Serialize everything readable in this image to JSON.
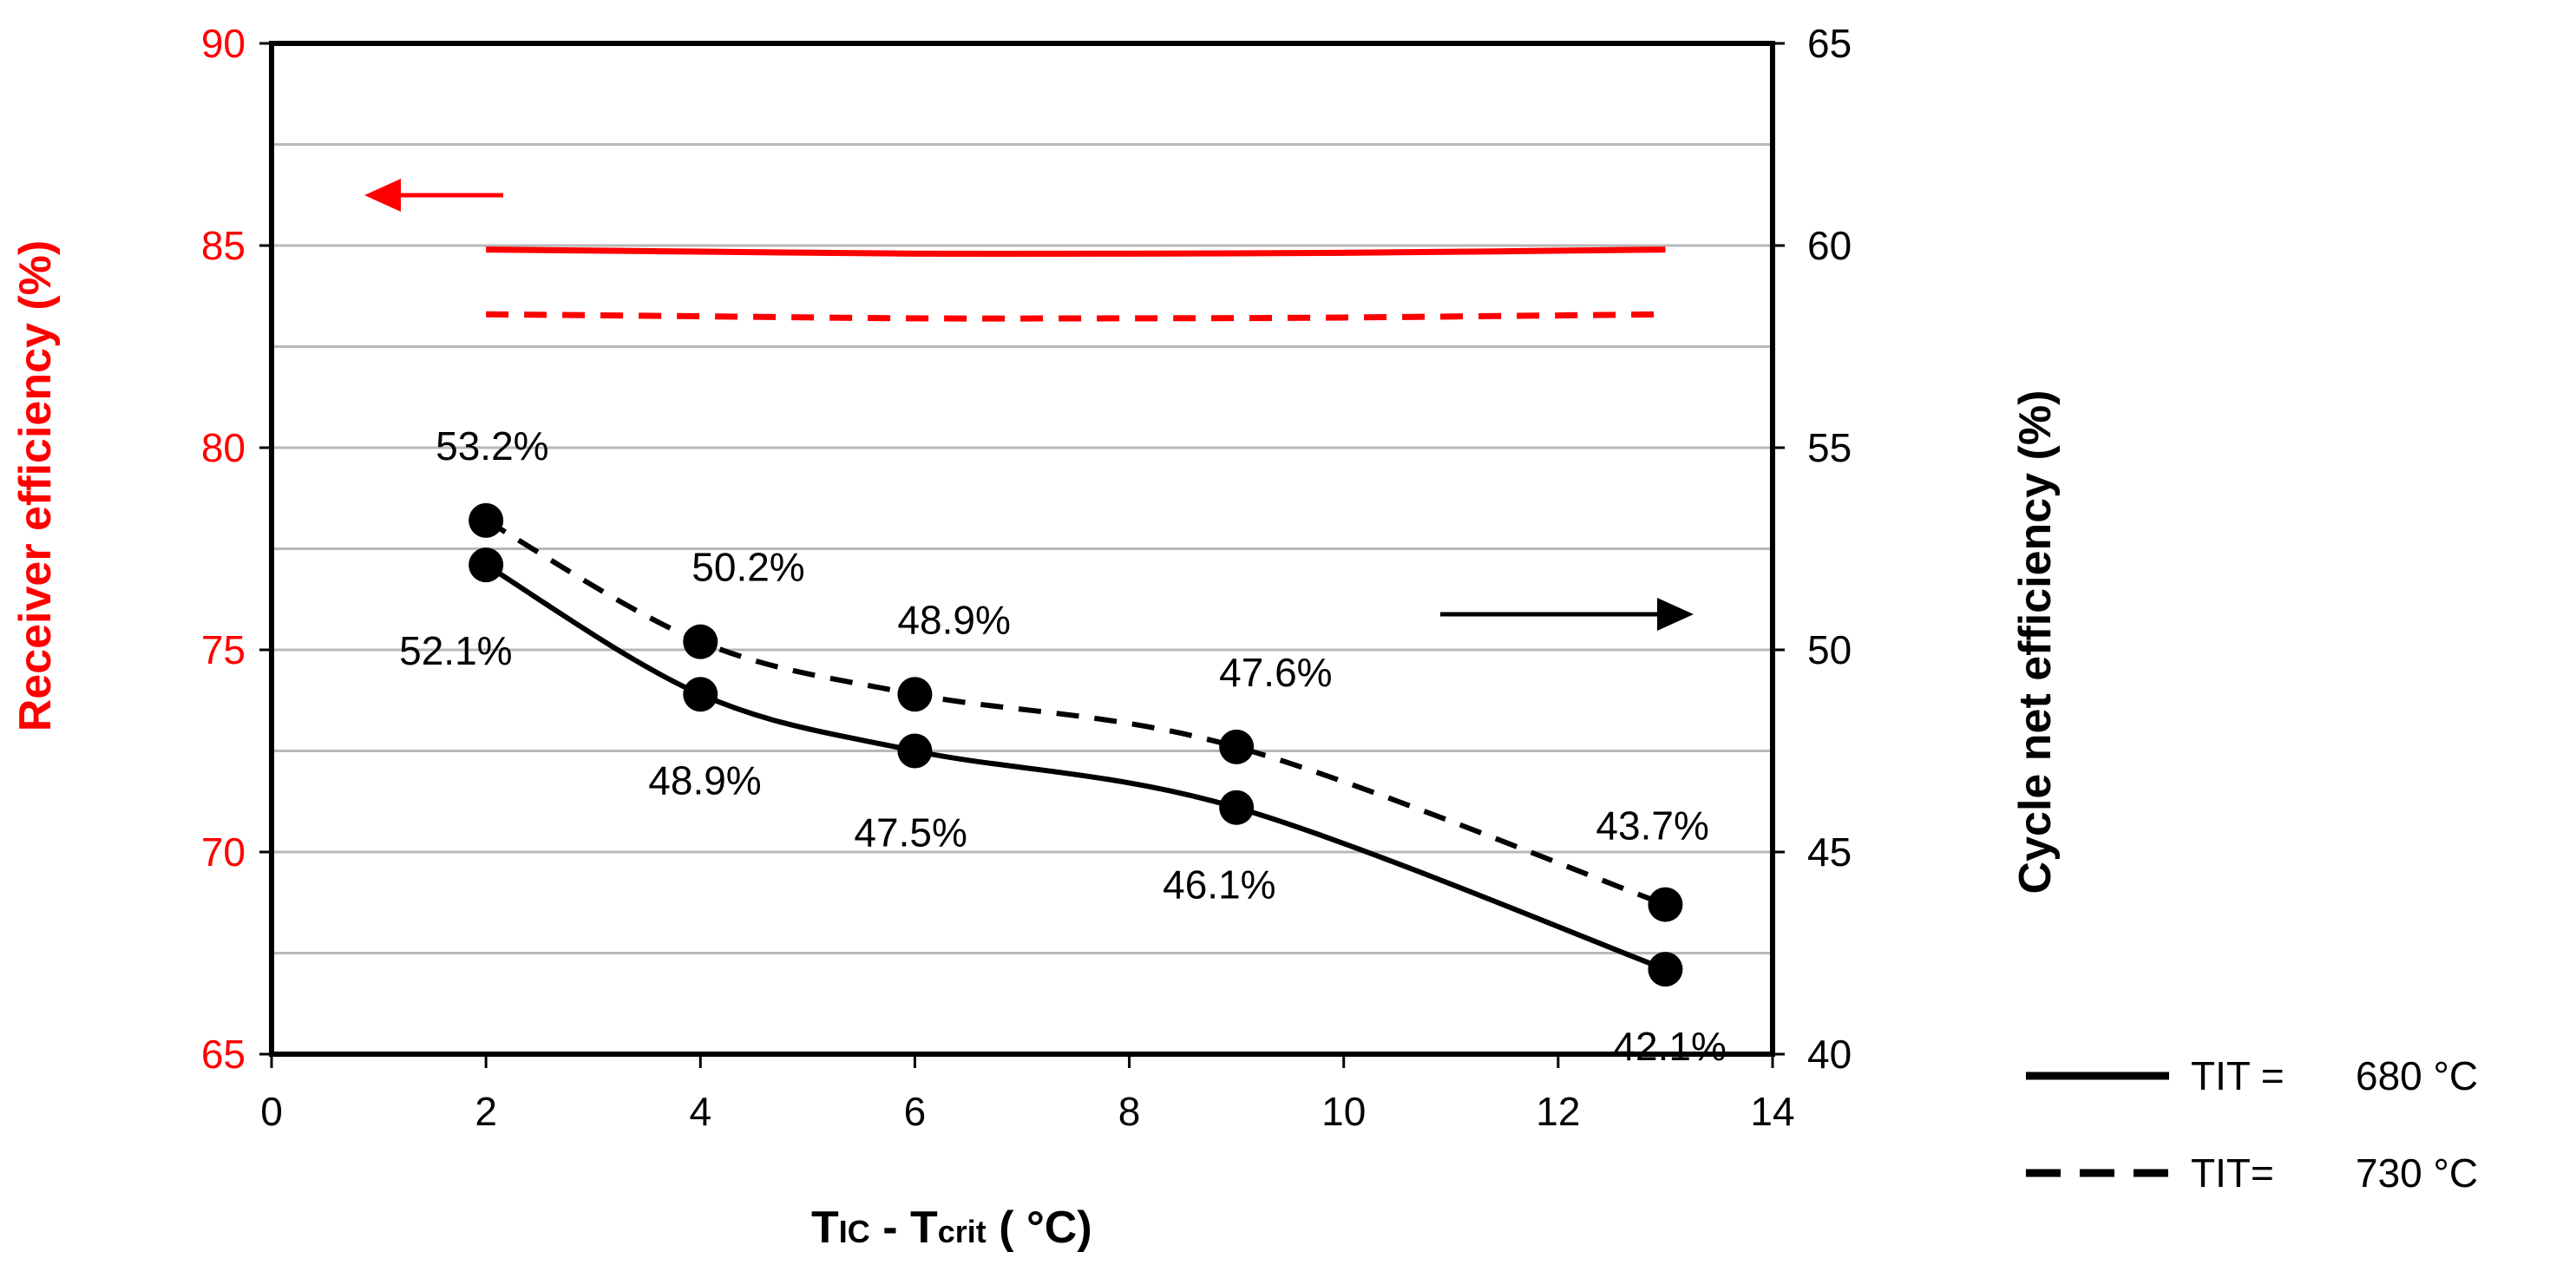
{
  "chart_data": {
    "type": "line",
    "x_axis": {
      "title_main": "T",
      "title_sub1": "IC",
      "title_mid": " - T",
      "title_sub2": "crit",
      "title_unit": "  ( °C)",
      "range": [
        0,
        14
      ],
      "ticks": [
        "0",
        "2",
        "4",
        "6",
        "8",
        "10",
        "12",
        "14"
      ]
    },
    "y_left": {
      "title": "Receiver efficiency (%)",
      "color": "#ff0000",
      "range": [
        65,
        90
      ],
      "ticks": [
        "65",
        "70",
        "75",
        "80",
        "85",
        "90"
      ]
    },
    "y_right": {
      "title": "Cycle net efficiency (%)",
      "color": "#000000",
      "range": [
        40,
        65
      ],
      "ticks": [
        "40",
        "45",
        "50",
        "55",
        "60",
        "65"
      ]
    },
    "grid": true,
    "series": [
      {
        "name": "Receiver efficiency, TIT = 680 °C",
        "axis": "left",
        "color": "#ff0000",
        "dash": "solid",
        "x": [
          2,
          4,
          6,
          8,
          10,
          13
        ],
        "values": [
          84.9,
          84.85,
          84.8,
          84.8,
          84.82,
          84.9
        ]
      },
      {
        "name": "Receiver efficiency, TIT = 730 °C",
        "axis": "left",
        "color": "#ff0000",
        "dash": "dashed",
        "x": [
          2,
          4,
          6,
          8,
          10,
          13
        ],
        "values": [
          83.3,
          83.25,
          83.2,
          83.2,
          83.22,
          83.3
        ]
      },
      {
        "name": "Cycle net efficiency, TIT = 680 °C",
        "axis": "right",
        "color": "#000000",
        "dash": "solid",
        "markers": true,
        "x": [
          2,
          4,
          6,
          9,
          13
        ],
        "values": [
          52.1,
          48.9,
          47.5,
          46.1,
          42.1
        ],
        "labels": [
          "52.1%",
          "48.9%",
          "47.5%",
          "46.1%",
          "42.1%"
        ]
      },
      {
        "name": "Cycle net efficiency, TIT = 730 °C",
        "axis": "right",
        "color": "#000000",
        "dash": "dashed",
        "markers": true,
        "x": [
          2,
          4,
          6,
          9,
          13
        ],
        "values": [
          53.2,
          50.2,
          48.9,
          47.6,
          43.7
        ],
        "labels": [
          "53.2%",
          "50.2%",
          "48.9%",
          "47.6%",
          "43.7%"
        ]
      }
    ],
    "arrows": [
      {
        "name": "left-axis-arrow",
        "color": "#ff0000",
        "direction": "left"
      },
      {
        "name": "right-axis-arrow",
        "color": "#000000",
        "direction": "right"
      }
    ],
    "legend": {
      "position": "bottom-right",
      "entries": [
        {
          "prefix": "TIT = ",
          "value": "680 °C",
          "dash": "solid"
        },
        {
          "prefix": "TIT=",
          "value": "730 °C",
          "dash": "dashed"
        }
      ]
    }
  }
}
